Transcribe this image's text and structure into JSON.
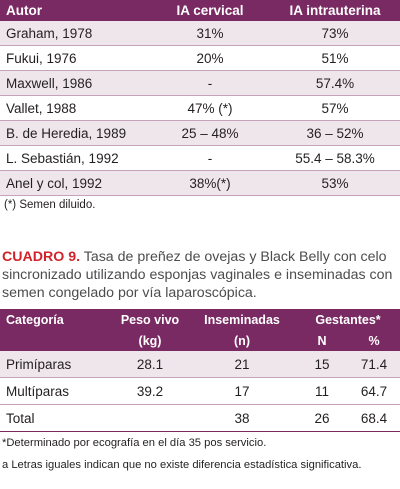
{
  "table1": {
    "headers": [
      "Autor",
      "IA cervical",
      "IA intrauterina"
    ],
    "rows": [
      [
        "Graham, 1978",
        "31%",
        "73%"
      ],
      [
        "Fukui, 1976",
        "20%",
        "51%"
      ],
      [
        "Maxwell, 1986",
        "-",
        "57.4%"
      ],
      [
        "Vallet, 1988",
        "47% (*)",
        "57%"
      ],
      [
        "B. de Heredia, 1989",
        "25 – 48%",
        "36 – 52%"
      ],
      [
        "L. Sebastián, 1992",
        "-",
        "55.4 – 58.3%"
      ],
      [
        "Anel y col, 1992",
        "38%(*)",
        "53%"
      ]
    ],
    "note": "(*) Semen diluido."
  },
  "cuadro": {
    "label": "CUADRO 9.",
    "text": " Tasa de preñez de ovejas y Black Belly con celo sincronizado utilizando esponjas vaginales e inseminadas con semen congelado por vía laparoscópica."
  },
  "table2": {
    "headers": {
      "categoria": "Categoría",
      "peso": "Peso vivo",
      "peso_unit": "(kg)",
      "inseminadas": "Inseminadas",
      "inseminadas_unit": "(n)",
      "gestantes": "Gestantes*",
      "n": "N",
      "pct": "%"
    },
    "rows": [
      [
        "Primíparas",
        "28.1",
        "21",
        "15",
        "71.4"
      ],
      [
        "Multíparas",
        "39.2",
        "17",
        "11",
        "64.7"
      ],
      [
        "Total",
        "",
        "38",
        "26",
        "68.4"
      ]
    ],
    "footnotes": [
      "*Determinado por ecografía en el día 35 pos servicio.",
      "a Letras iguales indican que no existe diferencia estadística significativa."
    ]
  }
}
